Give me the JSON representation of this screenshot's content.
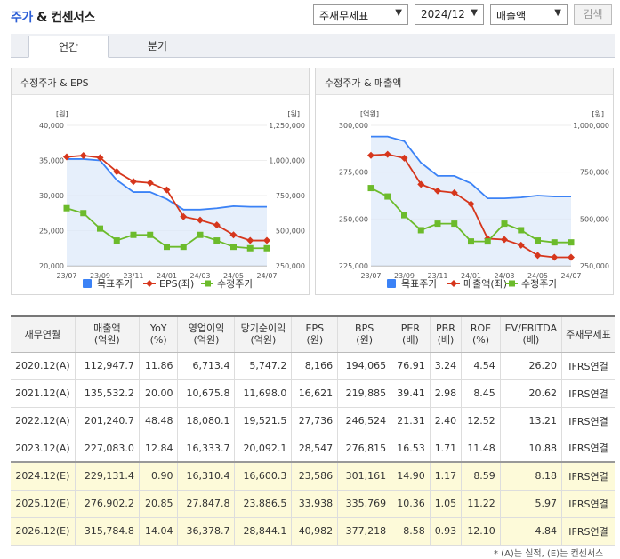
{
  "header": {
    "title_part1": "주가",
    "title_part2": " & 컨센서스",
    "select_type": "주재무제표",
    "select_date": "2024/12",
    "select_metric": "매출액",
    "search_label": "검색"
  },
  "tabs": [
    {
      "label": "연간"
    },
    {
      "label": "분기"
    }
  ],
  "colors": {
    "target": "#3b82f6",
    "eps": "#d6361c",
    "price": "#6cbb2b"
  },
  "charts": [
    {
      "title": "수정주가 & EPS",
      "left_unit": "[원]",
      "right_unit": "[원]",
      "left_ticks": [
        "40,000",
        "35,000",
        "30,000",
        "25,000",
        "20,000"
      ],
      "right_ticks": [
        "1,250,000",
        "1,000,000",
        "750,000",
        "500,000",
        "250,000"
      ],
      "x_ticks": [
        "23/07",
        "23/09",
        "23/11",
        "24/01",
        "24/03",
        "24/05",
        "24/07"
      ],
      "legend": [
        "목표주가",
        "EPS(좌)",
        "수정주가"
      ]
    },
    {
      "title": "수정주가 & 매출액",
      "left_unit": "[억원]",
      "right_unit": "[원]",
      "left_ticks": [
        "300,000",
        "275,000",
        "250,000",
        "225,000"
      ],
      "right_ticks": [
        "1,000,000",
        "750,000",
        "500,000",
        "250,000"
      ],
      "x_ticks": [
        "23/07",
        "23/09",
        "23/11",
        "24/01",
        "24/03",
        "24/05",
        "24/07"
      ],
      "legend": [
        "목표주가",
        "매출액(좌)",
        "수정주가"
      ]
    }
  ],
  "chart_data": [
    {
      "type": "line",
      "title": "수정주가 & EPS",
      "x": [
        "23/07",
        "23/08",
        "23/09",
        "23/10",
        "23/11",
        "23/12",
        "24/01",
        "24/02",
        "24/03",
        "24/04",
        "24/05",
        "24/06",
        "24/07"
      ],
      "ylim_left": [
        20000,
        40000
      ],
      "ylim_right": [
        250000,
        1250000
      ],
      "series": [
        {
          "name": "목표주가",
          "axis": "right",
          "values": [
            1010000,
            1010000,
            1000000,
            860000,
            775000,
            775000,
            725000,
            650000,
            650000,
            660000,
            675000,
            670000,
            670000
          ]
        },
        {
          "name": "EPS(좌)",
          "axis": "left",
          "values": [
            35500,
            35700,
            35400,
            33400,
            32000,
            31800,
            30800,
            27000,
            26500,
            25800,
            24400,
            23600,
            23600
          ]
        },
        {
          "name": "수정주가",
          "axis": "right",
          "values": [
            660000,
            625000,
            515000,
            430000,
            470000,
            470000,
            385000,
            385000,
            470000,
            430000,
            385000,
            375000,
            375000
          ]
        }
      ]
    },
    {
      "type": "line",
      "title": "수정주가 & 매출액",
      "x": [
        "23/07",
        "23/08",
        "23/09",
        "23/10",
        "23/11",
        "23/12",
        "24/01",
        "24/02",
        "24/03",
        "24/04",
        "24/05",
        "24/06",
        "24/07"
      ],
      "ylim_left": [
        225000,
        300000
      ],
      "ylim_right": [
        250000,
        1000000
      ],
      "series": [
        {
          "name": "목표주가",
          "axis": "right",
          "values": [
            940000,
            940000,
            915000,
            800000,
            730000,
            730000,
            690000,
            610000,
            610000,
            615000,
            625000,
            620000,
            620000
          ]
        },
        {
          "name": "매출액(좌)",
          "axis": "left",
          "values": [
            284000,
            284500,
            282500,
            268500,
            265000,
            264000,
            258000,
            239500,
            239000,
            236000,
            230500,
            229500,
            229500
          ]
        },
        {
          "name": "수정주가",
          "axis": "right",
          "values": [
            665000,
            620000,
            520000,
            440000,
            475000,
            475000,
            380000,
            380000,
            475000,
            440000,
            385000,
            375000,
            375000
          ]
        }
      ]
    }
  ],
  "table": {
    "headers": [
      [
        "재무연월",
        ""
      ],
      [
        "매출액",
        "(억원)"
      ],
      [
        "YoY",
        "(%)"
      ],
      [
        "영업이익",
        "(억원)"
      ],
      [
        "당기순이익",
        "(억원)"
      ],
      [
        "EPS",
        "(원)"
      ],
      [
        "BPS",
        "(원)"
      ],
      [
        "PER",
        "(배)"
      ],
      [
        "PBR",
        "(배)"
      ],
      [
        "ROE",
        "(%)"
      ],
      [
        "EV/EBITDA",
        "(배)"
      ],
      [
        "주재무제표",
        ""
      ]
    ],
    "rows": [
      [
        "2020.12(A)",
        "112,947.7",
        "11.86",
        "6,713.4",
        "5,747.2",
        "8,166",
        "194,065",
        "76.91",
        "3.24",
        "4.54",
        "26.20",
        "IFRS연결"
      ],
      [
        "2021.12(A)",
        "135,532.2",
        "20.00",
        "10,675.8",
        "11,698.0",
        "16,621",
        "219,885",
        "39.41",
        "2.98",
        "8.45",
        "20.62",
        "IFRS연결"
      ],
      [
        "2022.12(A)",
        "201,240.7",
        "48.48",
        "18,080.1",
        "19,521.5",
        "27,736",
        "246,524",
        "21.31",
        "2.40",
        "12.52",
        "13.21",
        "IFRS연결"
      ],
      [
        "2023.12(A)",
        "227,083.0",
        "12.84",
        "16,333.7",
        "20,092.1",
        "28,547",
        "276,815",
        "16.53",
        "1.71",
        "11.48",
        "10.88",
        "IFRS연결"
      ],
      [
        "2024.12(E)",
        "229,131.4",
        "0.90",
        "16,310.4",
        "16,600.3",
        "23,586",
        "301,161",
        "14.90",
        "1.17",
        "8.59",
        "8.18",
        "IFRS연결"
      ],
      [
        "2025.12(E)",
        "276,902.2",
        "20.85",
        "27,847.8",
        "23,886.5",
        "33,938",
        "335,769",
        "10.36",
        "1.05",
        "11.22",
        "5.97",
        "IFRS연결"
      ],
      [
        "2026.12(E)",
        "315,784.8",
        "14.04",
        "36,378.7",
        "28,844.1",
        "40,982",
        "377,218",
        "8.58",
        "0.93",
        "12.10",
        "4.84",
        "IFRS연결"
      ]
    ]
  },
  "note": "* (A)는 실적, (E)는 컨센서스"
}
